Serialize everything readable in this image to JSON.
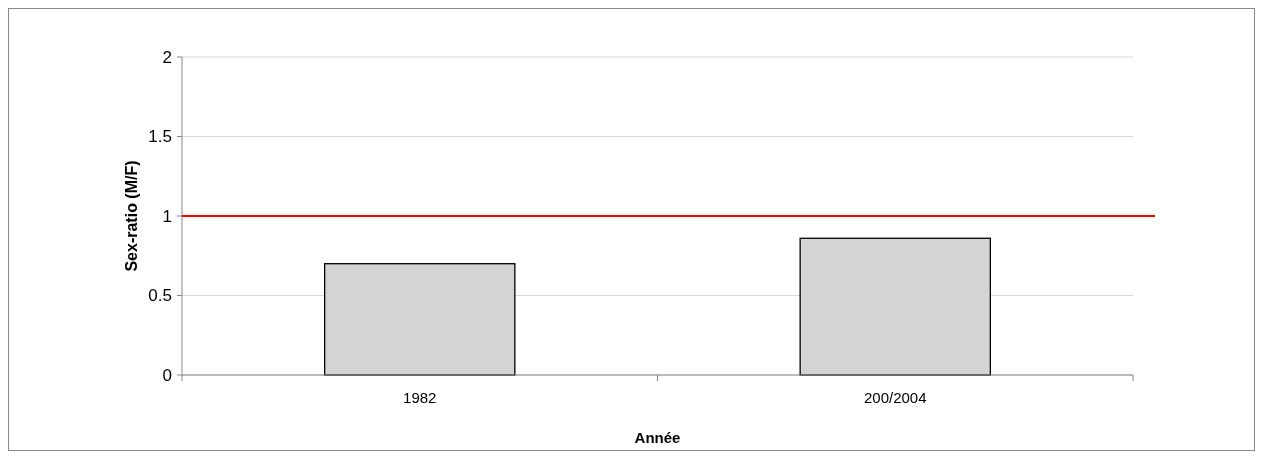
{
  "chart_data": {
    "type": "bar",
    "xlabel": "Année",
    "ylabel": "Sex-ratio (M/F)",
    "categories": [
      "1982",
      "200/2004"
    ],
    "series": [
      {
        "color": "#d4d4d4",
        "values": [
          0.7,
          0.86
        ]
      }
    ],
    "ylim": [
      0,
      2
    ],
    "yticks": [
      0,
      0.5,
      1,
      1.5,
      2
    ],
    "grid": "y",
    "ref_lines": [
      {
        "axis": "y",
        "value": 1,
        "color": "#ff0000",
        "line_style": "solid"
      }
    ]
  }
}
